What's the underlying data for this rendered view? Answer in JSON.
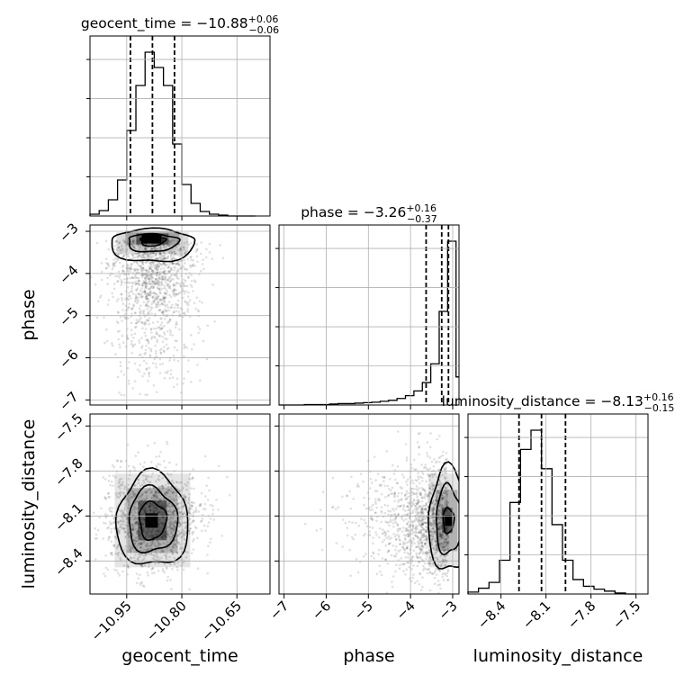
{
  "chart_data": {
    "type": "corner",
    "parameters": [
      "geocent_time",
      "phase",
      "luminosity_distance"
    ],
    "axis_labels": [
      "geocent_time",
      "phase",
      "luminosity_distance"
    ],
    "ranges": {
      "geocent_time": [
        -11.05,
        -10.56
      ],
      "phase": [
        -7.12,
        -2.85
      ],
      "luminosity_distance": [
        -8.62,
        -7.42
      ]
    },
    "ticks": {
      "geocent_time": {
        "values": [
          -10.95,
          -10.8,
          -10.65
        ],
        "labels": [
          "−10.95",
          "−10.80",
          "−10.65"
        ]
      },
      "phase": {
        "values": [
          -7,
          -6,
          -5,
          -4,
          -3
        ],
        "labels": [
          "−7",
          "−6",
          "−5",
          "−4",
          "−3"
        ]
      },
      "luminosity_distance": {
        "values": [
          -8.4,
          -8.1,
          -7.8,
          -7.5
        ],
        "labels": [
          "−8.4",
          "−8.1",
          "−7.8",
          "−7.5"
        ]
      }
    },
    "grid": true,
    "titles": [
      {
        "param": "geocent_time",
        "prefix": "geocent_time = −10.88",
        "sup": "+0.06",
        "sub": "−0.06"
      },
      {
        "param": "phase",
        "prefix": "phase = −3.26",
        "sup": "+0.16",
        "sub": "−0.37"
      },
      {
        "param": "luminosity_distance",
        "prefix": "luminosity_distance = −8.13",
        "sup": "+0.16",
        "sub": "−0.15"
      }
    ],
    "quantiles": {
      "geocent_time": [
        -10.94,
        -10.88,
        -10.82
      ],
      "phase": [
        -3.63,
        -3.26,
        -3.1
      ],
      "luminosity_distance": [
        -8.28,
        -8.13,
        -7.97
      ]
    },
    "histograms": {
      "geocent_time": {
        "edges": [
          -11.05,
          -11.025,
          -11.0,
          -10.975,
          -10.95,
          -10.925,
          -10.9,
          -10.875,
          -10.85,
          -10.825,
          -10.8,
          -10.775,
          -10.75,
          -10.725,
          -10.7,
          -10.675,
          -10.65,
          -10.625,
          -10.6
        ],
        "counts": [
          2,
          6,
          18,
          40,
          95,
          145,
          182,
          165,
          145,
          80,
          35,
          14,
          5,
          2,
          1,
          0,
          0,
          0
        ]
      },
      "phase": {
        "edges": [
          -7.12,
          -6.92,
          -6.72,
          -6.52,
          -6.32,
          -6.12,
          -5.92,
          -5.72,
          -5.52,
          -5.32,
          -5.12,
          -4.92,
          -4.72,
          -4.52,
          -4.32,
          -4.12,
          -3.92,
          -3.72,
          -3.52,
          -3.32,
          -3.12,
          -2.92,
          -2.85
        ],
        "counts": [
          0,
          0,
          0,
          1,
          1,
          1,
          2,
          3,
          3,
          4,
          5,
          6,
          8,
          10,
          14,
          20,
          30,
          48,
          88,
          200,
          350,
          60
        ]
      },
      "luminosity_distance": {
        "edges": [
          -8.62,
          -8.55,
          -8.48,
          -8.41,
          -8.34,
          -8.27,
          -8.2,
          -8.13,
          -8.06,
          -7.99,
          -7.92,
          -7.85,
          -7.78,
          -7.71,
          -7.64,
          -7.57,
          -7.5
        ],
        "counts": [
          2,
          6,
          12,
          35,
          95,
          150,
          170,
          130,
          72,
          35,
          15,
          8,
          5,
          3,
          1,
          0
        ]
      }
    },
    "joint": [
      {
        "row": "phase",
        "col": "geocent_time",
        "peak": [
          -10.88,
          -3.2
        ]
      },
      {
        "row": "luminosity_distance",
        "col": "geocent_time",
        "peak": [
          -10.88,
          -8.13
        ]
      },
      {
        "row": "luminosity_distance",
        "col": "phase",
        "peak": [
          -3.1,
          -8.13
        ]
      }
    ]
  }
}
